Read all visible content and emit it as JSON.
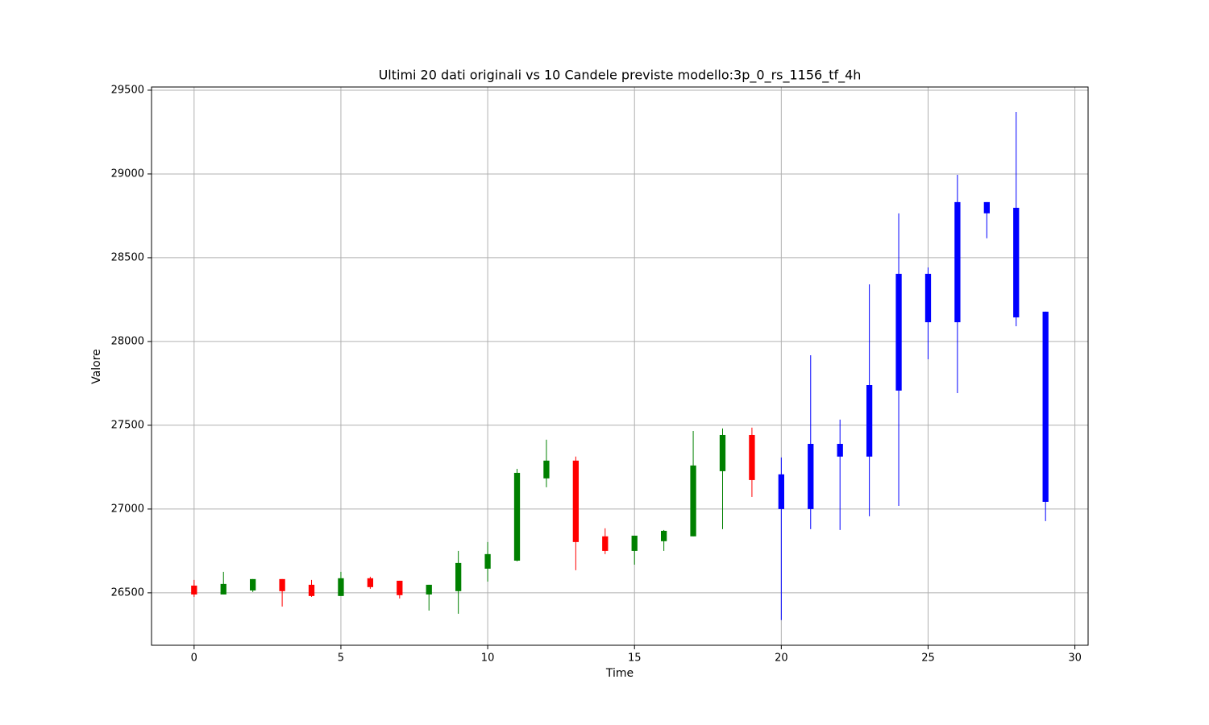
{
  "chart_data": {
    "type": "candlestick",
    "title": "Ultimi 20 dati originali vs 10 Candele previste modello:3p_0_rs_1156_tf_4h",
    "x_label": "Time",
    "y_label": "Valore",
    "x": [
      0,
      1,
      2,
      3,
      4,
      5,
      6,
      7,
      8,
      9,
      10,
      11,
      12,
      13,
      14,
      15,
      16,
      17,
      18,
      19,
      20,
      21,
      22,
      23,
      24,
      25,
      26,
      27,
      28,
      29
    ],
    "open": [
      26543,
      26490,
      26514,
      26582,
      26548,
      26481,
      26587,
      26572,
      26490,
      26510,
      26644,
      26692,
      27183,
      27289,
      26837,
      26750,
      26808,
      26837,
      27226,
      27442,
      27207,
      27000,
      27389,
      27313,
      27707,
      28404,
      28115,
      28832,
      28798,
      28178
    ],
    "high": [
      26577,
      26625,
      26582,
      26582,
      26577,
      26625,
      26596,
      26572,
      26548,
      26750,
      26803,
      27240,
      27414,
      27313,
      26885,
      26841,
      26875,
      27466,
      27481,
      27486,
      27308,
      27918,
      27534,
      28341,
      28765,
      28442,
      28995,
      28832,
      29370,
      28178
    ],
    "low": [
      26476,
      26490,
      26505,
      26418,
      26476,
      26481,
      26524,
      26466,
      26394,
      26375,
      26567,
      26688,
      27130,
      26635,
      26731,
      26668,
      26750,
      26837,
      26880,
      27072,
      26337,
      26880,
      26875,
      26957,
      27019,
      27894,
      27692,
      28616,
      28091,
      26928
    ],
    "close": [
      26490,
      26553,
      26582,
      26510,
      26481,
      26587,
      26534,
      26486,
      26548,
      26678,
      26731,
      27216,
      27289,
      26803,
      26750,
      26841,
      26870,
      27260,
      27442,
      27173,
      27000,
      27389,
      27313,
      27740,
      28404,
      28115,
      28832,
      28765,
      28144,
      27043
    ],
    "colors": [
      "#ff0000",
      "#008000",
      "#008000",
      "#ff0000",
      "#ff0000",
      "#008000",
      "#ff0000",
      "#ff0000",
      "#008000",
      "#008000",
      "#008000",
      "#008000",
      "#008000",
      "#ff0000",
      "#ff0000",
      "#008000",
      "#008000",
      "#008000",
      "#008000",
      "#ff0000",
      "#0000ff",
      "#0000ff",
      "#0000ff",
      "#0000ff",
      "#0000ff",
      "#0000ff",
      "#0000ff",
      "#0000ff",
      "#0000ff",
      "#0000ff"
    ],
    "xlim": [
      -1.45,
      30.45
    ],
    "ylim": [
      26187,
      29519
    ],
    "xticks": [
      0,
      5,
      10,
      15,
      20,
      25,
      30
    ],
    "yticks": [
      26500,
      27000,
      27500,
      28000,
      28500,
      29000,
      29500
    ],
    "grid": true
  }
}
